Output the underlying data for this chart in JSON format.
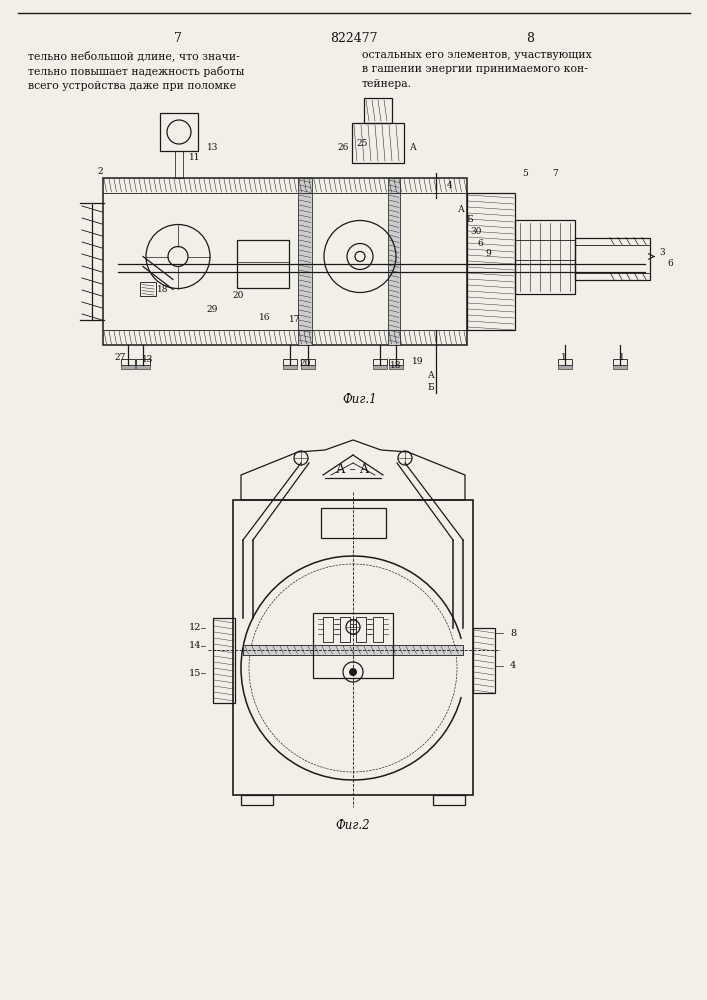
{
  "page_num_left": "7",
  "page_num_right": "8",
  "patent_num": "822477",
  "text_left": "тельно небольшой длине, что значи-\nтельно повышает надежность работы\nвсего устройства даже при поломке",
  "text_right": "остальных его элементов, участвующих\nв гашении энергии принимаемого кон-\nтейнера.",
  "fig1_caption": "Фиг.1",
  "fig2_caption": "Фиг.2",
  "bg_color": "#f2efe8",
  "line_color": "#1a1a1a",
  "text_color": "#111111"
}
